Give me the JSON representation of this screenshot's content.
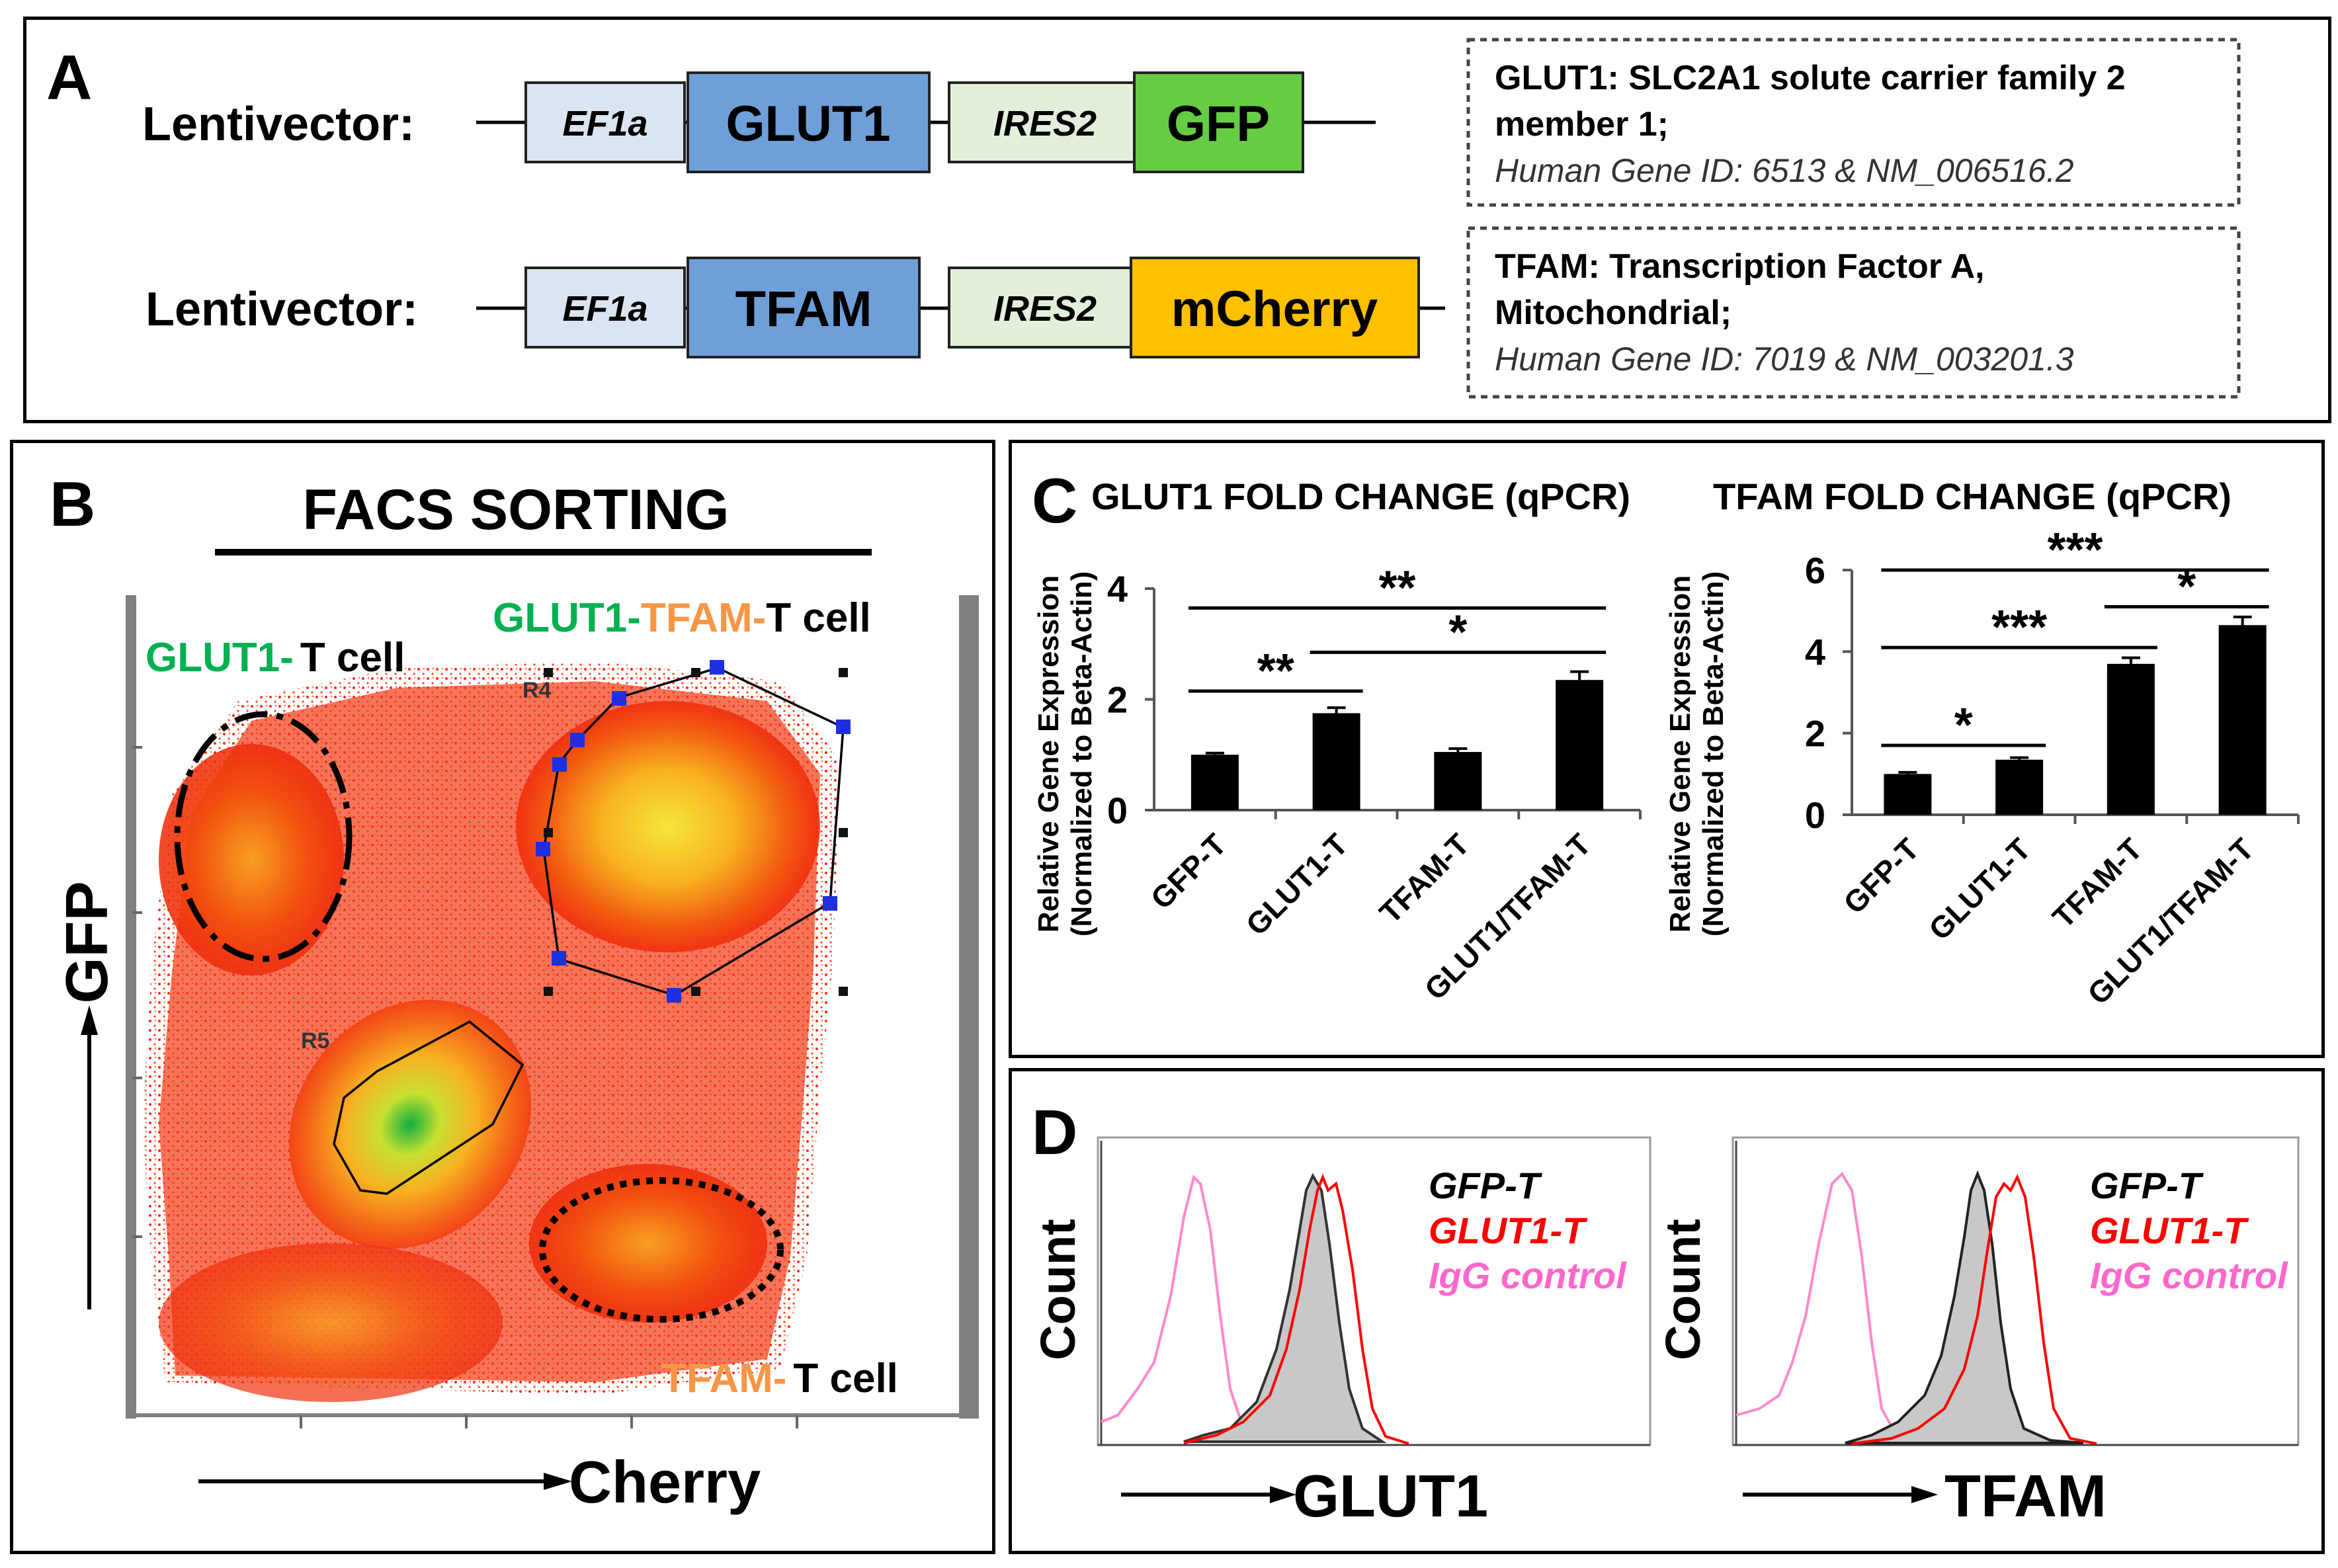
{
  "panel_a": {
    "letter": "A",
    "rows": [
      {
        "label": "Lentivector:",
        "promoter": "EF1a",
        "gene": "GLUT1",
        "ires": "IRES2",
        "reporter": "GFP",
        "reporter_color": "#66cc44",
        "info_title_1": "GLUT1: SLC2A1 solute carrier family 2",
        "info_title_2": "member 1;",
        "info_id": "Human Gene ID: 6513 & NM_006516.2"
      },
      {
        "label": "Lentivector:",
        "promoter": "EF1a",
        "gene": "TFAM",
        "ires": "IRES2",
        "reporter": "mCherry",
        "reporter_color": "#ffc000",
        "info_title_1": "TFAM: Transcription Factor A,",
        "info_title_2": "Mitochondrial;",
        "info_id": "Human Gene ID: 7019 & NM_003201.3"
      }
    ],
    "colors": {
      "promoter": "#dbe5f1",
      "gene": "#6f9fd8",
      "ires": "#e2efda"
    }
  },
  "panel_b": {
    "letter": "B",
    "title": "FACS SORTING",
    "y_axis": "GFP",
    "x_axis": "Cherry",
    "gate_r4": "R4",
    "gate_r5": "R5",
    "pop_glut1_a": "GLUT1-",
    "pop_glut1_b": "T cell",
    "pop_double_a": "GLUT1-",
    "pop_double_b": "TFAM-",
    "pop_double_c": "T cell",
    "pop_tfam_a": "TFAM-",
    "pop_tfam_b": "T cell",
    "green": "#00b050",
    "orange": "#f79646"
  },
  "panel_c": {
    "letter": "C",
    "ylabel_1": "Relative Gene Expression",
    "ylabel_2": "(Normalized to Beta-Actin)"
  },
  "chart_data": [
    {
      "type": "bar",
      "title": "GLUT1 FOLD CHANGE (qPCR)",
      "ylabel": "Relative Gene Expression (Normalized to Beta-Actin)",
      "categories": [
        "GFP-T",
        "GLUT1-T",
        "TFAM-T",
        "GLUT1/TFAM-T"
      ],
      "values": [
        1.0,
        1.75,
        1.05,
        2.35
      ],
      "errors": [
        0.03,
        0.1,
        0.06,
        0.15
      ],
      "ylim": [
        0,
        4
      ],
      "yticks": [
        0,
        2,
        4
      ],
      "significance": [
        {
          "from": 0,
          "to": 1,
          "label": "**",
          "level": 2.15
        },
        {
          "from": 1,
          "to": 3,
          "label": "*",
          "level": 2.85
        },
        {
          "from": 0,
          "to": 3,
          "label": "**",
          "level": 3.65
        }
      ]
    },
    {
      "type": "bar",
      "title": "TFAM FOLD CHANGE (qPCR)",
      "ylabel": "Relative Gene Expression (Normalized to Beta-Actin)",
      "categories": [
        "GFP-T",
        "GLUT1-T",
        "TFAM-T",
        "GLUT1/TFAM-T"
      ],
      "values": [
        1.0,
        1.35,
        3.7,
        4.65
      ],
      "errors": [
        0.04,
        0.05,
        0.15,
        0.2
      ],
      "ylim": [
        0,
        6
      ],
      "yticks": [
        0,
        2,
        4,
        6
      ],
      "significance": [
        {
          "from": 0,
          "to": 1,
          "label": "*",
          "level": 1.7
        },
        {
          "from": 0,
          "to": 2,
          "label": "***",
          "level": 4.1
        },
        {
          "from": 2,
          "to": 3,
          "label": "*",
          "level": 5.1
        },
        {
          "from": 0,
          "to": 3,
          "label": "***",
          "level": 6.0
        }
      ]
    }
  ],
  "panel_d": {
    "letter": "D",
    "count_label": "Count",
    "plots": [
      {
        "x_label": "GLUT1"
      },
      {
        "x_label": "TFAM"
      }
    ],
    "legend": [
      {
        "label": "GFP-T",
        "color": "#000000"
      },
      {
        "label": "GLUT1-T",
        "color": "#ff0000"
      },
      {
        "label": "IgG control",
        "color": "#ff66cc"
      }
    ]
  }
}
